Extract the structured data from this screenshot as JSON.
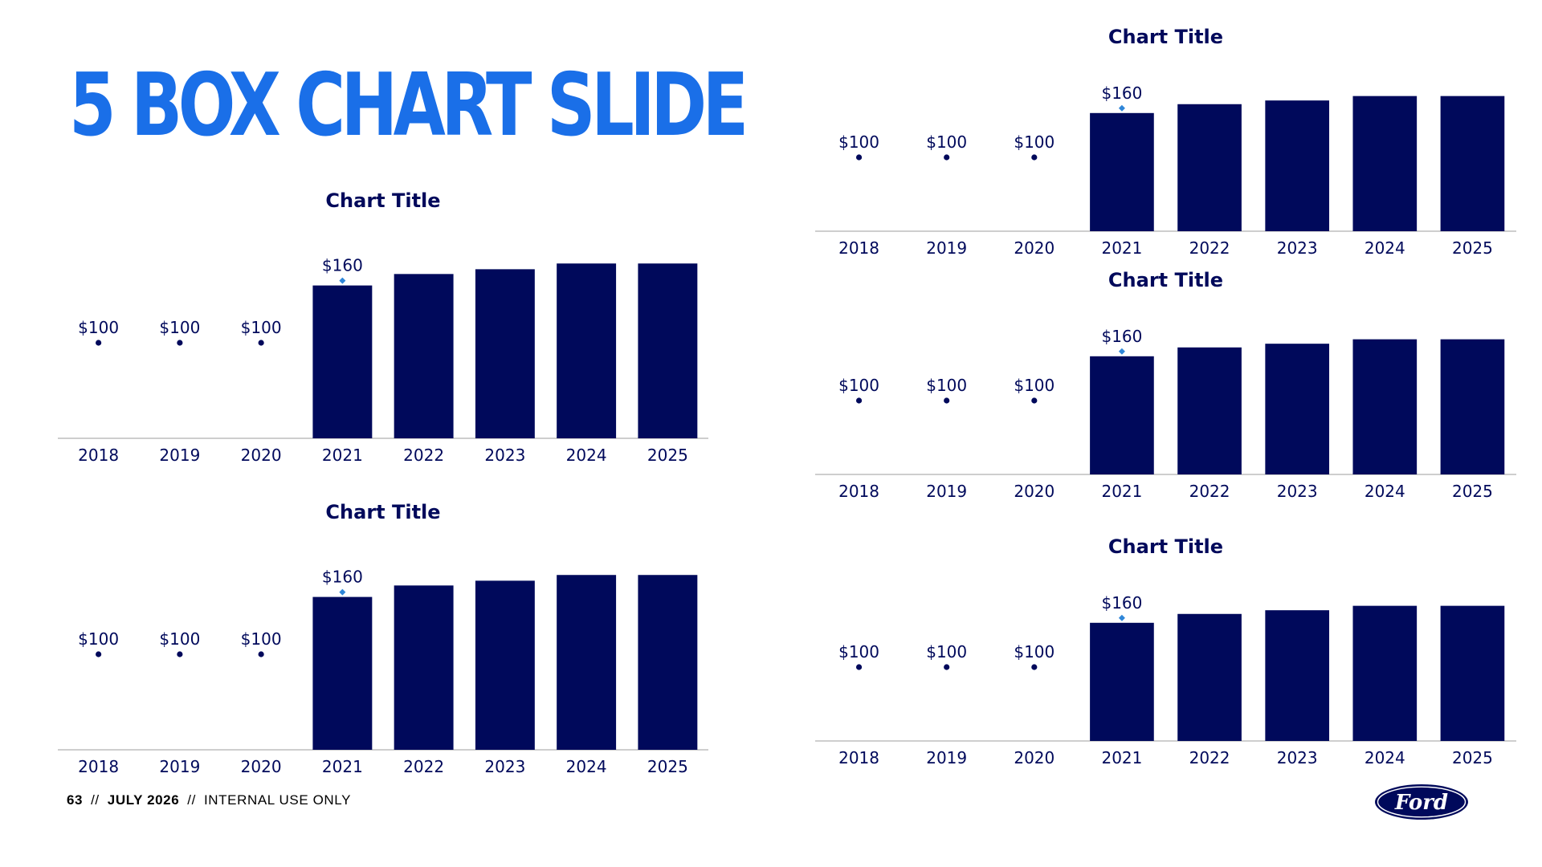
{
  "slide": {
    "title": "5 BOX CHART SLIDE"
  },
  "footer": {
    "page_number": "63",
    "separator": "//",
    "date": "JULY 2026",
    "classification": "INTERNAL USE ONLY"
  },
  "brand": {
    "logo_text": "Ford",
    "logo_color": "#00095b"
  },
  "colors": {
    "title": "#1a6fe8",
    "bar": "#00095b",
    "marker_dot": "#00095b",
    "marker_diamond": "#2f86d8",
    "axis": "#bdbdbd",
    "text": "#00095b"
  },
  "chart_data": [
    {
      "type": "bar",
      "title": "Chart Title",
      "categories": [
        "2018",
        "2019",
        "2020",
        "2021",
        "2022",
        "2023",
        "2024",
        "2025"
      ],
      "values": [
        100,
        100,
        100,
        160,
        172,
        177,
        183,
        183
      ],
      "data_labels": [
        "$100",
        "$100",
        "$100",
        "$160",
        "",
        "",
        "",
        ""
      ],
      "bar_visible": [
        false,
        false,
        false,
        true,
        true,
        true,
        true,
        true
      ],
      "ylim": [
        0,
        200
      ]
    },
    {
      "type": "bar",
      "title": "Chart Title",
      "categories": [
        "2018",
        "2019",
        "2020",
        "2021",
        "2022",
        "2023",
        "2024",
        "2025"
      ],
      "values": [
        100,
        100,
        100,
        160,
        172,
        177,
        183,
        183
      ],
      "data_labels": [
        "$100",
        "$100",
        "$100",
        "$160",
        "",
        "",
        "",
        ""
      ],
      "bar_visible": [
        false,
        false,
        false,
        true,
        true,
        true,
        true,
        true
      ],
      "ylim": [
        0,
        200
      ]
    },
    {
      "type": "bar",
      "title": "Chart Title",
      "categories": [
        "2018",
        "2019",
        "2020",
        "2021",
        "2022",
        "2023",
        "2024",
        "2025"
      ],
      "values": [
        100,
        100,
        100,
        160,
        172,
        177,
        183,
        183
      ],
      "data_labels": [
        "$100",
        "$100",
        "$100",
        "$160",
        "",
        "",
        "",
        ""
      ],
      "bar_visible": [
        false,
        false,
        false,
        true,
        true,
        true,
        true,
        true
      ],
      "ylim": [
        0,
        200
      ]
    },
    {
      "type": "bar",
      "title": "Chart Title",
      "categories": [
        "2018",
        "2019",
        "2020",
        "2021",
        "2022",
        "2023",
        "2024",
        "2025"
      ],
      "values": [
        100,
        100,
        100,
        160,
        172,
        177,
        183,
        183
      ],
      "data_labels": [
        "$100",
        "$100",
        "$100",
        "$160",
        "",
        "",
        "",
        ""
      ],
      "bar_visible": [
        false,
        false,
        false,
        true,
        true,
        true,
        true,
        true
      ],
      "ylim": [
        0,
        200
      ]
    },
    {
      "type": "bar",
      "title": "Chart Title",
      "categories": [
        "2018",
        "2019",
        "2020",
        "2021",
        "2022",
        "2023",
        "2024",
        "2025"
      ],
      "values": [
        100,
        100,
        100,
        160,
        172,
        177,
        183,
        183
      ],
      "data_labels": [
        "$100",
        "$100",
        "$100",
        "$160",
        "",
        "",
        "",
        ""
      ],
      "bar_visible": [
        false,
        false,
        false,
        true,
        true,
        true,
        true,
        true
      ],
      "ylim": [
        0,
        200
      ]
    }
  ]
}
